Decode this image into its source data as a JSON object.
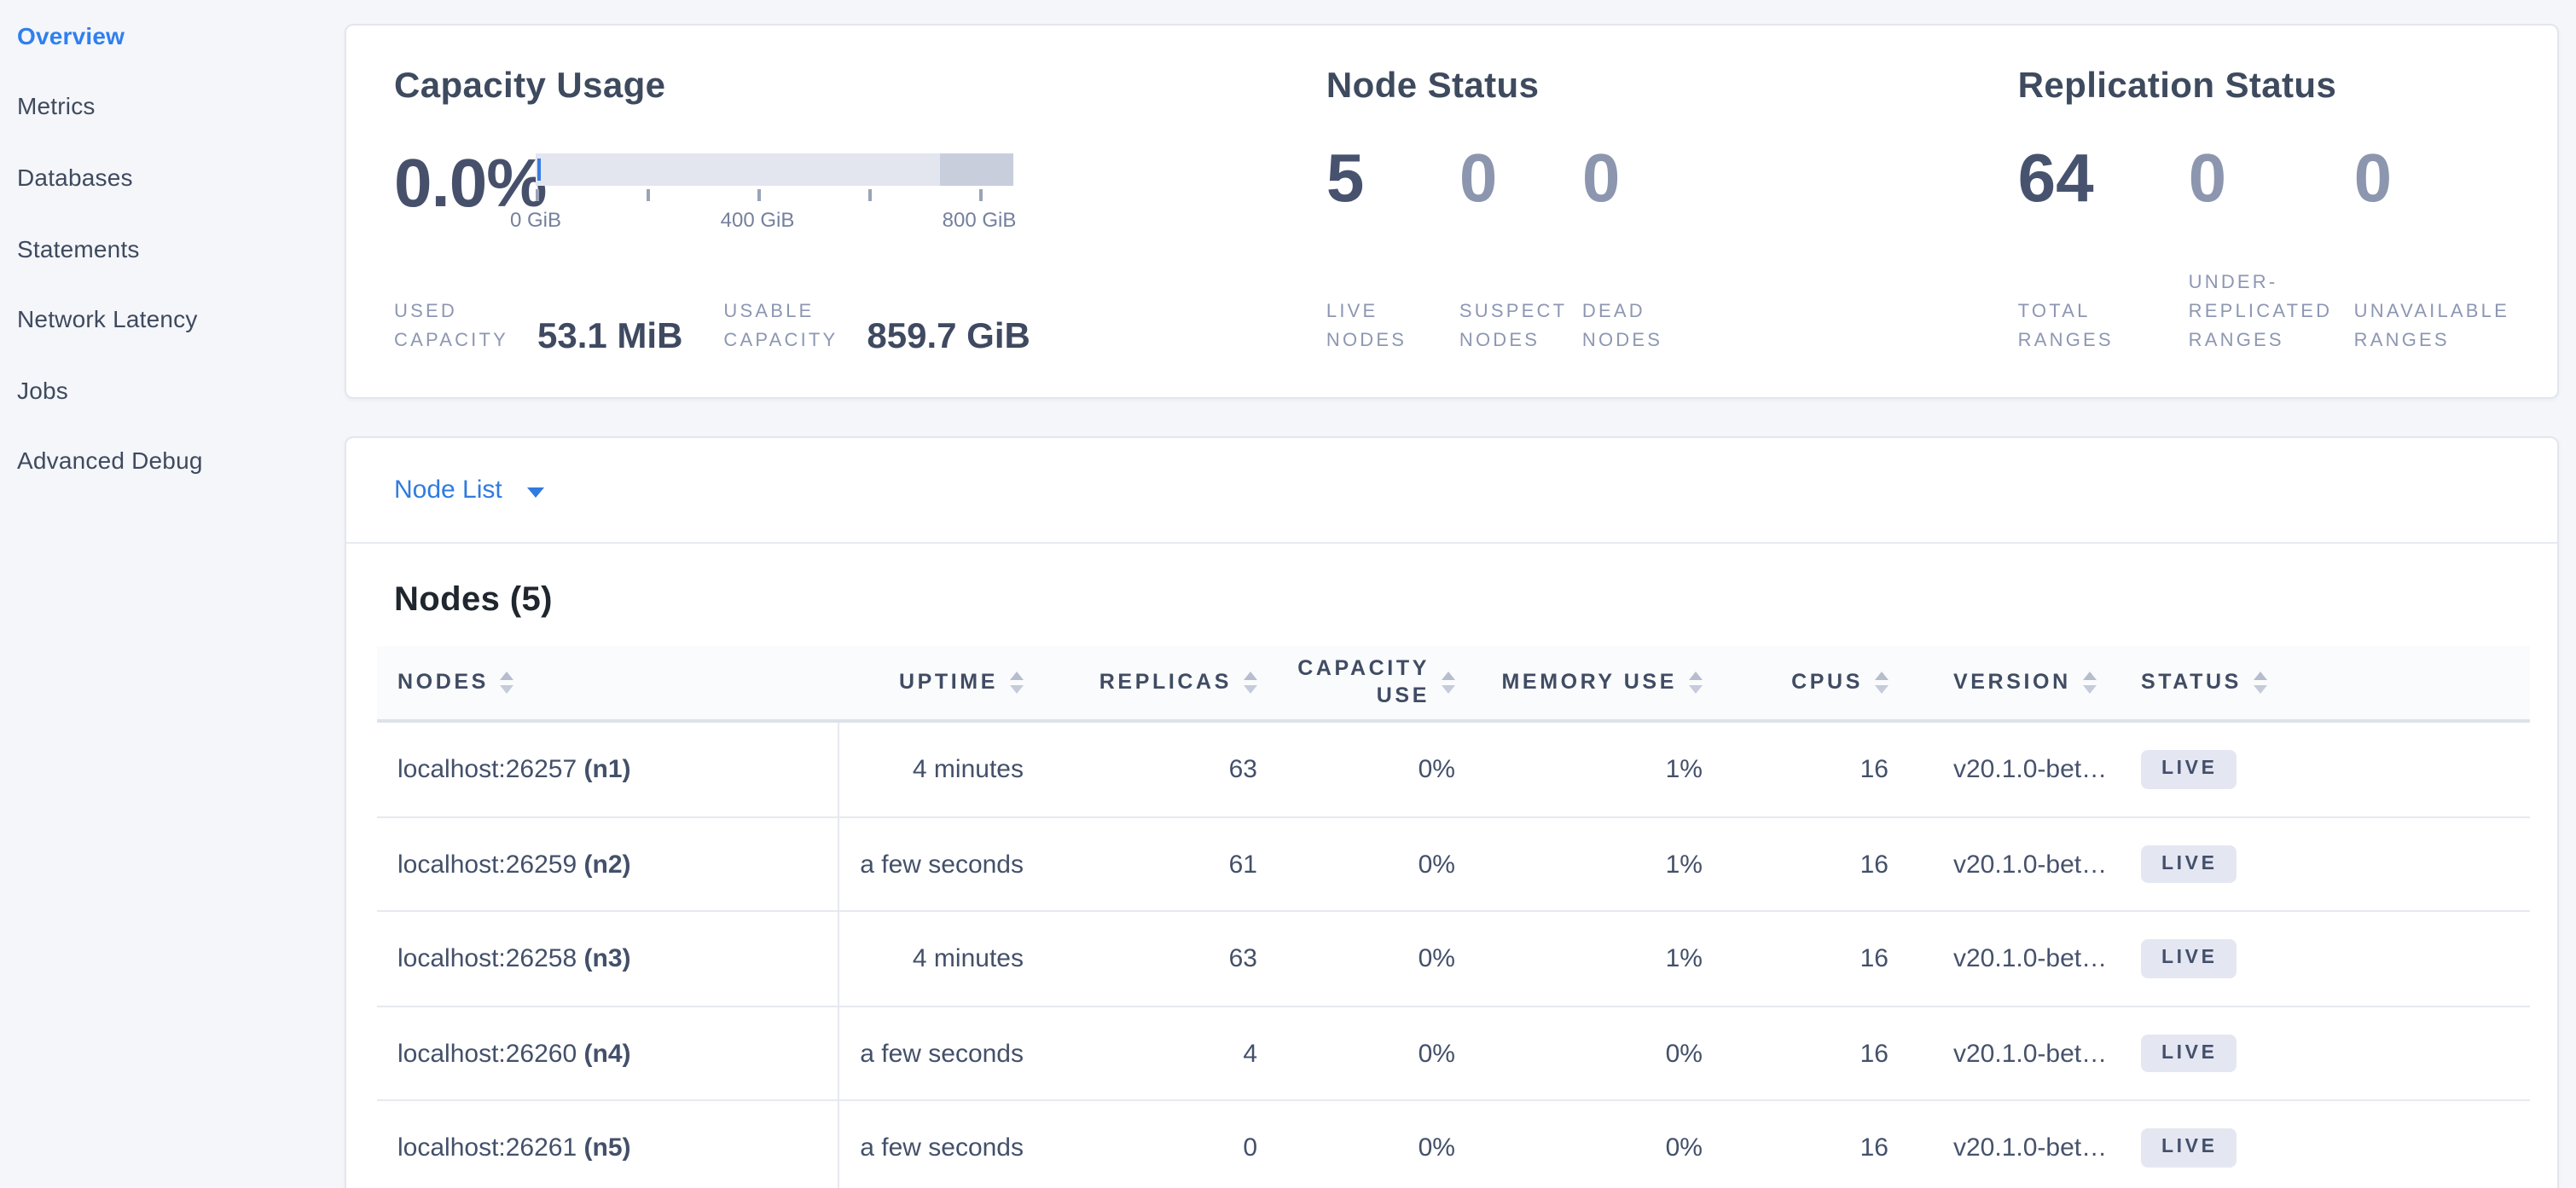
{
  "colors": {
    "page_bg": "#f4f6fa",
    "accent_blue": "#2f7ff0",
    "link_blue": "#2f7be0",
    "gauge_bar": "#e3e6ef",
    "gauge_dark_segment": "#c9cedd",
    "gauge_used_marker": "#3a7ce1",
    "badge_bg": "#e4e7f2",
    "dark_text": "#404c63",
    "muted_text": "#8d97b2"
  },
  "sidebar": {
    "items": [
      {
        "label": "Overview",
        "active": true
      },
      {
        "label": "Metrics",
        "active": false
      },
      {
        "label": "Databases",
        "active": false
      },
      {
        "label": "Statements",
        "active": false
      },
      {
        "label": "Network Latency",
        "active": false
      },
      {
        "label": "Jobs",
        "active": false
      },
      {
        "label": "Advanced Debug",
        "active": false
      }
    ]
  },
  "summary": {
    "capacity": {
      "title": "Capacity Usage",
      "percent": "0.0%",
      "axis_ticks": [
        "0 GiB",
        "400 GiB",
        "800 GiB"
      ],
      "stats": [
        {
          "label": "USED\nCAPACITY",
          "value": "53.1 MiB"
        },
        {
          "label": "USABLE\nCAPACITY",
          "value": "859.7 GiB"
        }
      ]
    },
    "node_status": {
      "title": "Node Status",
      "stats": [
        {
          "value": "5",
          "label": "LIVE\nNODES",
          "emphasis": true
        },
        {
          "value": "0",
          "label": "SUSPECT\nNODES",
          "emphasis": false
        },
        {
          "value": "0",
          "label": "DEAD\nNODES",
          "emphasis": false
        }
      ]
    },
    "replication": {
      "title": "Replication Status",
      "stats": [
        {
          "value": "64",
          "label": "TOTAL\nRANGES",
          "emphasis": true
        },
        {
          "value": "0",
          "label": "UNDER-\nREPLICATED\nRANGES",
          "emphasis": false
        },
        {
          "value": "0",
          "label": "UNAVAILABLE\nRANGES",
          "emphasis": false
        }
      ]
    }
  },
  "node_list": {
    "dropdown_label": "Node List",
    "heading": "Nodes (5)",
    "columns": [
      {
        "label": "NODES",
        "align": "left",
        "key": "nodes"
      },
      {
        "label": "UPTIME",
        "align": "right",
        "key": "uptime"
      },
      {
        "label": "REPLICAS",
        "align": "right",
        "key": "replicas"
      },
      {
        "label": "CAPACITY\nUSE",
        "align": "right",
        "key": "capacity-use"
      },
      {
        "label": "MEMORY USE",
        "align": "right",
        "key": "memory-use"
      },
      {
        "label": "CPUS",
        "align": "right",
        "key": "cpus"
      },
      {
        "label": "VERSION",
        "align": "left",
        "key": "version"
      },
      {
        "label": "STATUS",
        "align": "left",
        "key": "status"
      }
    ],
    "rows": [
      {
        "address": "localhost:26257",
        "node_id": "(n1)",
        "uptime": "4 minutes",
        "replicas": "63",
        "capacity_use": "0%",
        "memory_use": "1%",
        "cpus": "16",
        "version": "v20.1.0-bet…",
        "status": "LIVE"
      },
      {
        "address": "localhost:26259",
        "node_id": "(n2)",
        "uptime": "a few seconds",
        "replicas": "61",
        "capacity_use": "0%",
        "memory_use": "1%",
        "cpus": "16",
        "version": "v20.1.0-bet…",
        "status": "LIVE"
      },
      {
        "address": "localhost:26258",
        "node_id": "(n3)",
        "uptime": "4 minutes",
        "replicas": "63",
        "capacity_use": "0%",
        "memory_use": "1%",
        "cpus": "16",
        "version": "v20.1.0-bet…",
        "status": "LIVE"
      },
      {
        "address": "localhost:26260",
        "node_id": "(n4)",
        "uptime": "a few seconds",
        "replicas": "4",
        "capacity_use": "0%",
        "memory_use": "0%",
        "cpus": "16",
        "version": "v20.1.0-bet…",
        "status": "LIVE"
      },
      {
        "address": "localhost:26261",
        "node_id": "(n5)",
        "uptime": "a few seconds",
        "replicas": "0",
        "capacity_use": "0%",
        "memory_use": "0%",
        "cpus": "16",
        "version": "v20.1.0-bet…",
        "status": "LIVE"
      }
    ]
  }
}
